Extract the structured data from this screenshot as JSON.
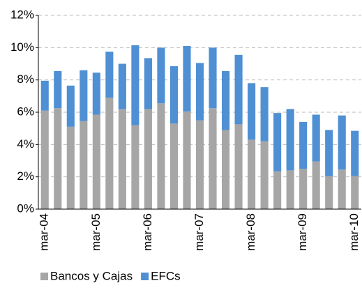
{
  "chart_data": {
    "type": "stacked-bar",
    "categories": [
      "mar-04",
      null,
      null,
      null,
      "mar-05",
      null,
      null,
      null,
      "mar-06",
      null,
      null,
      null,
      "mar-07",
      null,
      null,
      null,
      "mar-08",
      null,
      null,
      null,
      "mar-09",
      null,
      null,
      null,
      "mar-10"
    ],
    "series": [
      {
        "name": "Bancos y Cajas",
        "color": "#a6a6a6",
        "values": [
          6.1,
          6.25,
          5.1,
          5.45,
          5.85,
          6.9,
          6.2,
          5.2,
          6.2,
          6.55,
          5.3,
          6.05,
          5.5,
          6.25,
          4.9,
          5.25,
          4.3,
          4.2,
          2.35,
          2.4,
          2.5,
          2.95,
          2.05,
          2.45,
          2.05
        ]
      },
      {
        "name": "EFCs",
        "color": "#4f8fd3",
        "values": [
          1.85,
          2.3,
          2.55,
          3.15,
          2.6,
          2.85,
          2.8,
          4.95,
          3.15,
          3.45,
          3.55,
          4.05,
          3.55,
          3.75,
          3.65,
          4.3,
          3.5,
          3.35,
          3.6,
          3.8,
          2.9,
          2.9,
          2.85,
          3.35,
          2.8
        ]
      }
    ],
    "ylim": [
      0,
      12
    ],
    "yticks": [
      {
        "value": 0,
        "label": "0%"
      },
      {
        "value": 2,
        "label": "2%"
      },
      {
        "value": 4,
        "label": "4%"
      },
      {
        "value": 6,
        "label": "6%"
      },
      {
        "value": 8,
        "label": "8%"
      },
      {
        "value": 10,
        "label": "10%"
      },
      {
        "value": 12,
        "label": "12%"
      }
    ],
    "grid": true,
    "legend": "bottom"
  }
}
